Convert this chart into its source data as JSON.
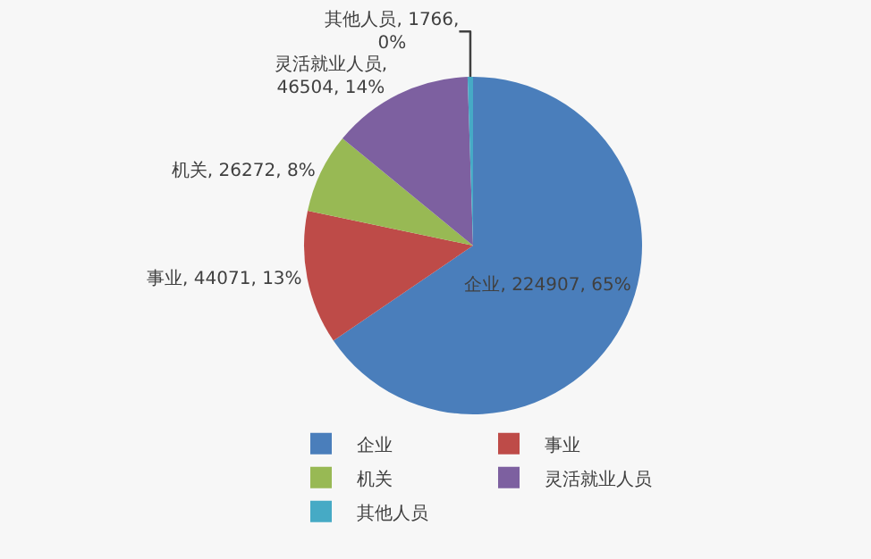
{
  "chart_data": {
    "type": "pie",
    "categories": [
      "企业",
      "事业",
      "机关",
      "灵活就业人员",
      "其他人员"
    ],
    "values": [
      224907,
      44071,
      26272,
      46504,
      1766
    ],
    "colors": [
      "#4a7ebb",
      "#be4b48",
      "#98b954",
      "#7d60a0",
      "#46aac5"
    ],
    "value_labels": [
      "企业, 224907, 65%",
      "事业, 44071, 13%",
      "机关, 26272, 8%",
      "灵活就业人员,\n46504, 14%",
      "其他人员, 1766,\n0%"
    ],
    "legend": "bottom"
  }
}
